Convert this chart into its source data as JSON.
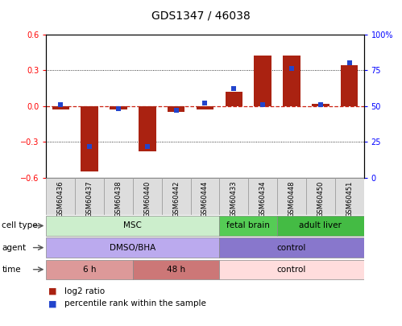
{
  "title": "GDS1347 / 46038",
  "samples": [
    "GSM60436",
    "GSM60437",
    "GSM60438",
    "GSM60440",
    "GSM60442",
    "GSM60444",
    "GSM60433",
    "GSM60434",
    "GSM60448",
    "GSM60450",
    "GSM60451"
  ],
  "log2_ratio": [
    -0.03,
    -0.55,
    -0.03,
    -0.38,
    -0.05,
    -0.03,
    0.12,
    0.42,
    0.42,
    0.02,
    0.34
  ],
  "percentile_rank": [
    51,
    22,
    48,
    22,
    47,
    52,
    62,
    51,
    76,
    51,
    80
  ],
  "ylim": [
    -0.6,
    0.6
  ],
  "y2lim": [
    0,
    100
  ],
  "yticks_left": [
    -0.6,
    -0.3,
    0.0,
    0.3,
    0.6
  ],
  "yticks_right": [
    0,
    25,
    50,
    75,
    100
  ],
  "bar_color": "#AA2211",
  "dot_color": "#2244CC",
  "zero_line_color": "#CC2211",
  "cell_type_groups": [
    {
      "label": "MSC",
      "start": 0,
      "end": 6,
      "color": "#CCEECC"
    },
    {
      "label": "fetal brain",
      "start": 6,
      "end": 8,
      "color": "#55CC55"
    },
    {
      "label": "adult liver",
      "start": 8,
      "end": 11,
      "color": "#44BB44"
    }
  ],
  "agent_groups": [
    {
      "label": "DMSO/BHA",
      "start": 0,
      "end": 6,
      "color": "#BBAAEE"
    },
    {
      "label": "control",
      "start": 6,
      "end": 11,
      "color": "#8877CC"
    }
  ],
  "time_groups": [
    {
      "label": "6 h",
      "start": 0,
      "end": 3,
      "color": "#DD9999"
    },
    {
      "label": "48 h",
      "start": 3,
      "end": 6,
      "color": "#CC7777"
    },
    {
      "label": "control",
      "start": 6,
      "end": 11,
      "color": "#FFDDDD"
    }
  ],
  "row_labels": [
    "cell type",
    "agent",
    "time"
  ],
  "legend_red_label": "log2 ratio",
  "legend_blue_label": "percentile rank within the sample",
  "xtick_bg_color": "#DDDDDD",
  "xtick_border_color": "#999999"
}
